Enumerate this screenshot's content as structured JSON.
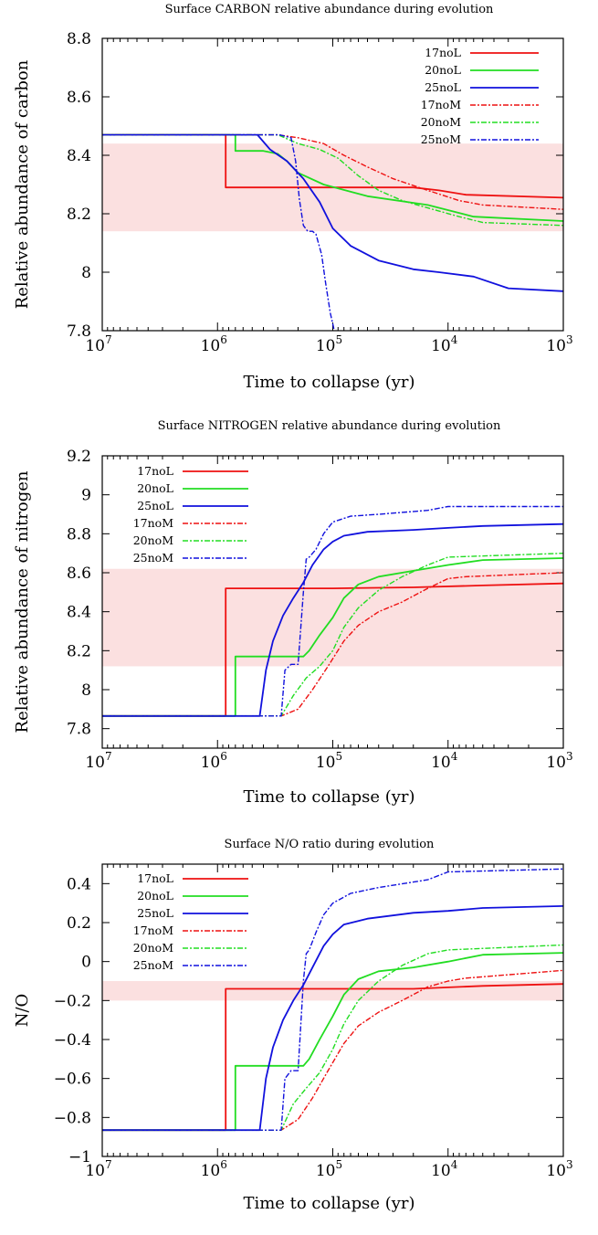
{
  "colors": {
    "17": "#ee1111",
    "20": "#22dd22",
    "25": "#1111dd",
    "band": "#fbe0e0"
  },
  "chart_data": [
    {
      "type": "line",
      "title": "Surface CARBON relative abundance during evolution",
      "xlabel": "Time to collapse (yr)",
      "ylabel": "Relative abundance of carbon",
      "x_scale": "log reversed",
      "xlim": [
        10000000,
        1000
      ],
      "ylim": [
        7.8,
        8.8
      ],
      "yticks": [
        7.8,
        8,
        8.2,
        8.4,
        8.6,
        8.8
      ],
      "ytick_labels": [
        "7.8",
        "8",
        "8.2",
        "8.4",
        "8.6",
        "8.8"
      ],
      "xticks": [
        10000000,
        1000000,
        100000,
        10000,
        1000
      ],
      "xtick_labels": [
        {
          "b": "10",
          "e": "7"
        },
        {
          "b": "10",
          "e": "6"
        },
        {
          "b": "10",
          "e": "5"
        },
        {
          "b": "10",
          "e": "4"
        },
        {
          "b": "10",
          "e": "3"
        }
      ],
      "band": [
        8.14,
        8.44
      ],
      "legend": "top-right",
      "series": [
        {
          "name": "17noL",
          "model": "17",
          "dash": false,
          "x": [
            12000000,
            850000,
            850000,
            400000,
            70000,
            20000,
            12000,
            7000,
            1000
          ],
          "y": [
            8.47,
            8.47,
            8.29,
            8.29,
            8.29,
            8.29,
            8.28,
            8.265,
            8.255
          ]
        },
        {
          "name": "20noL",
          "model": "20",
          "dash": false,
          "x": [
            12000000,
            700000,
            700000,
            400000,
            300000,
            250000,
            200000,
            120000,
            50000,
            15000,
            6000,
            1000
          ],
          "y": [
            8.47,
            8.47,
            8.415,
            8.415,
            8.405,
            8.38,
            8.34,
            8.3,
            8.26,
            8.23,
            8.19,
            8.175
          ]
        },
        {
          "name": "25noL",
          "model": "25",
          "dash": false,
          "x": [
            12000000,
            450000,
            350000,
            250000,
            180000,
            130000,
            100000,
            70000,
            40000,
            20000,
            12000,
            6000,
            3000,
            1000
          ],
          "y": [
            8.47,
            8.47,
            8.42,
            8.38,
            8.32,
            8.24,
            8.15,
            8.09,
            8.04,
            8.01,
            8.0,
            7.985,
            7.945,
            7.935
          ]
        },
        {
          "name": "17noM",
          "model": "17",
          "dash": true,
          "x": [
            12000000,
            300000,
            200000,
            120000,
            80000,
            50000,
            30000,
            15000,
            8000,
            5000,
            1000
          ],
          "y": [
            8.47,
            8.47,
            8.46,
            8.44,
            8.4,
            8.36,
            8.32,
            8.28,
            8.245,
            8.23,
            8.215
          ]
        },
        {
          "name": "20noM",
          "model": "20",
          "dash": true,
          "x": [
            12000000,
            300000,
            200000,
            130000,
            90000,
            60000,
            40000,
            25000,
            15000,
            8000,
            5000,
            1000
          ],
          "y": [
            8.47,
            8.47,
            8.44,
            8.42,
            8.39,
            8.33,
            8.28,
            8.245,
            8.22,
            8.19,
            8.17,
            8.16
          ]
        },
        {
          "name": "25noM",
          "model": "25",
          "dash": true,
          "x": [
            12000000,
            290000,
            230000,
            210000,
            195000,
            180000,
            165000,
            150000,
            140000,
            125000,
            115000,
            105000,
            97000
          ],
          "y": [
            8.47,
            8.47,
            8.46,
            8.38,
            8.25,
            8.16,
            8.14,
            8.14,
            8.13,
            8.06,
            7.96,
            7.86,
            7.8
          ]
        }
      ]
    },
    {
      "type": "line",
      "title": "Surface NITROGEN relative abundance during evolution",
      "xlabel": "Time to collapse (yr)",
      "ylabel": "Relative abundance of nitrogen",
      "x_scale": "log reversed",
      "xlim": [
        10000000,
        1000
      ],
      "ylim": [
        7.7,
        9.2
      ],
      "yticks": [
        7.8,
        8,
        8.2,
        8.4,
        8.6,
        8.8,
        9,
        9.2
      ],
      "ytick_labels": [
        "7.8",
        "8",
        "8.2",
        "8.4",
        "8.6",
        "8.8",
        "9",
        "9.2"
      ],
      "xticks": [
        10000000,
        1000000,
        100000,
        10000,
        1000
      ],
      "xtick_labels": [
        {
          "b": "10",
          "e": "7"
        },
        {
          "b": "10",
          "e": "6"
        },
        {
          "b": "10",
          "e": "5"
        },
        {
          "b": "10",
          "e": "4"
        },
        {
          "b": "10",
          "e": "3"
        }
      ],
      "band": [
        8.12,
        8.62
      ],
      "legend": "top-left",
      "series": [
        {
          "name": "17noL",
          "model": "17",
          "dash": false,
          "x": [
            12000000,
            850000,
            850000,
            100000,
            20000,
            5000,
            1000
          ],
          "y": [
            7.865,
            7.865,
            8.52,
            8.52,
            8.525,
            8.535,
            8.545
          ]
        },
        {
          "name": "20noL",
          "model": "20",
          "dash": false,
          "x": [
            12000000,
            700000,
            700000,
            180000,
            160000,
            130000,
            100000,
            80000,
            60000,
            40000,
            20000,
            10000,
            5000,
            1000
          ],
          "y": [
            7.865,
            7.865,
            8.17,
            8.17,
            8.2,
            8.28,
            8.37,
            8.47,
            8.54,
            8.58,
            8.61,
            8.64,
            8.665,
            8.675
          ]
        },
        {
          "name": "25noL",
          "model": "25",
          "dash": false,
          "x": [
            12000000,
            430000,
            380000,
            330000,
            270000,
            220000,
            180000,
            150000,
            120000,
            100000,
            80000,
            50000,
            20000,
            10000,
            5000,
            1000
          ],
          "y": [
            7.865,
            7.865,
            8.1,
            8.25,
            8.38,
            8.47,
            8.55,
            8.64,
            8.72,
            8.76,
            8.79,
            8.81,
            8.82,
            8.83,
            8.84,
            8.85
          ]
        },
        {
          "name": "17noM",
          "model": "17",
          "dash": true,
          "x": [
            12000000,
            280000,
            200000,
            150000,
            110000,
            80000,
            60000,
            40000,
            25000,
            15000,
            10000,
            7000,
            1000
          ],
          "y": [
            7.865,
            7.865,
            7.9,
            8.0,
            8.12,
            8.25,
            8.33,
            8.4,
            8.45,
            8.52,
            8.57,
            8.58,
            8.6
          ]
        },
        {
          "name": "20noM",
          "model": "20",
          "dash": true,
          "x": [
            12000000,
            280000,
            220000,
            170000,
            130000,
            100000,
            80000,
            60000,
            40000,
            25000,
            15000,
            10000,
            1000
          ],
          "y": [
            7.865,
            7.865,
            7.97,
            8.06,
            8.12,
            8.2,
            8.32,
            8.42,
            8.51,
            8.58,
            8.64,
            8.68,
            8.7
          ]
        },
        {
          "name": "25noM",
          "model": "25",
          "dash": true,
          "x": [
            12000000,
            280000,
            260000,
            230000,
            200000,
            180000,
            170000,
            160000,
            140000,
            120000,
            100000,
            70000,
            40000,
            15000,
            10000,
            1000
          ],
          "y": [
            7.865,
            7.865,
            8.1,
            8.13,
            8.13,
            8.5,
            8.67,
            8.68,
            8.72,
            8.8,
            8.86,
            8.89,
            8.9,
            8.92,
            8.94,
            8.94
          ]
        }
      ]
    },
    {
      "type": "line",
      "title": "Surface N/O ratio during evolution",
      "xlabel": "Time to collapse (yr)",
      "ylabel": "N/O",
      "x_scale": "log reversed",
      "xlim": [
        10000000,
        1000
      ],
      "ylim": [
        -1,
        0.5
      ],
      "yticks": [
        -1,
        -0.8,
        -0.6,
        -0.4,
        -0.2,
        0,
        0.2,
        0.4
      ],
      "ytick_labels": [
        "−1",
        "−0.8",
        "−0.6",
        "−0.4",
        "−0.2",
        "0",
        "0.2",
        "0.4"
      ],
      "xticks": [
        10000000,
        1000000,
        100000,
        10000,
        1000
      ],
      "xtick_labels": [
        {
          "b": "10",
          "e": "7"
        },
        {
          "b": "10",
          "e": "6"
        },
        {
          "b": "10",
          "e": "5"
        },
        {
          "b": "10",
          "e": "4"
        },
        {
          "b": "10",
          "e": "3"
        }
      ],
      "band": [
        -0.2,
        -0.1
      ],
      "legend": "top-left",
      "series": [
        {
          "name": "17noL",
          "model": "17",
          "dash": false,
          "x": [
            12000000,
            850000,
            850000,
            100000,
            20000,
            5000,
            1000
          ],
          "y": [
            -0.865,
            -0.865,
            -0.14,
            -0.14,
            -0.14,
            -0.125,
            -0.115
          ]
        },
        {
          "name": "20noL",
          "model": "20",
          "dash": false,
          "x": [
            12000000,
            700000,
            700000,
            180000,
            160000,
            130000,
            100000,
            80000,
            60000,
            40000,
            20000,
            10000,
            5000,
            1000
          ],
          "y": [
            -0.865,
            -0.865,
            -0.535,
            -0.535,
            -0.5,
            -0.4,
            -0.28,
            -0.17,
            -0.09,
            -0.05,
            -0.03,
            0.0,
            0.035,
            0.045
          ]
        },
        {
          "name": "25noL",
          "model": "25",
          "dash": false,
          "x": [
            12000000,
            430000,
            380000,
            330000,
            270000,
            220000,
            180000,
            150000,
            120000,
            100000,
            80000,
            50000,
            20000,
            10000,
            5000,
            1000
          ],
          "y": [
            -0.865,
            -0.865,
            -0.6,
            -0.44,
            -0.3,
            -0.2,
            -0.12,
            -0.03,
            0.08,
            0.14,
            0.19,
            0.22,
            0.25,
            0.26,
            0.275,
            0.285
          ]
        },
        {
          "name": "17noM",
          "model": "17",
          "dash": true,
          "x": [
            12000000,
            280000,
            200000,
            150000,
            110000,
            80000,
            60000,
            40000,
            25000,
            15000,
            10000,
            7000,
            1000
          ],
          "y": [
            -0.865,
            -0.865,
            -0.81,
            -0.7,
            -0.56,
            -0.42,
            -0.33,
            -0.26,
            -0.2,
            -0.13,
            -0.1,
            -0.085,
            -0.045
          ]
        },
        {
          "name": "20noM",
          "model": "20",
          "dash": true,
          "x": [
            12000000,
            280000,
            220000,
            170000,
            130000,
            100000,
            80000,
            60000,
            40000,
            25000,
            15000,
            10000,
            1000
          ],
          "y": [
            -0.865,
            -0.865,
            -0.73,
            -0.65,
            -0.57,
            -0.45,
            -0.32,
            -0.2,
            -0.1,
            -0.02,
            0.04,
            0.06,
            0.085
          ]
        },
        {
          "name": "25noM",
          "model": "25",
          "dash": true,
          "x": [
            12000000,
            280000,
            260000,
            230000,
            200000,
            180000,
            170000,
            160000,
            140000,
            120000,
            100000,
            70000,
            40000,
            15000,
            10000,
            1000
          ],
          "y": [
            -0.865,
            -0.865,
            -0.6,
            -0.56,
            -0.56,
            -0.1,
            0.04,
            0.06,
            0.15,
            0.24,
            0.3,
            0.35,
            0.38,
            0.42,
            0.46,
            0.475
          ]
        }
      ]
    }
  ]
}
